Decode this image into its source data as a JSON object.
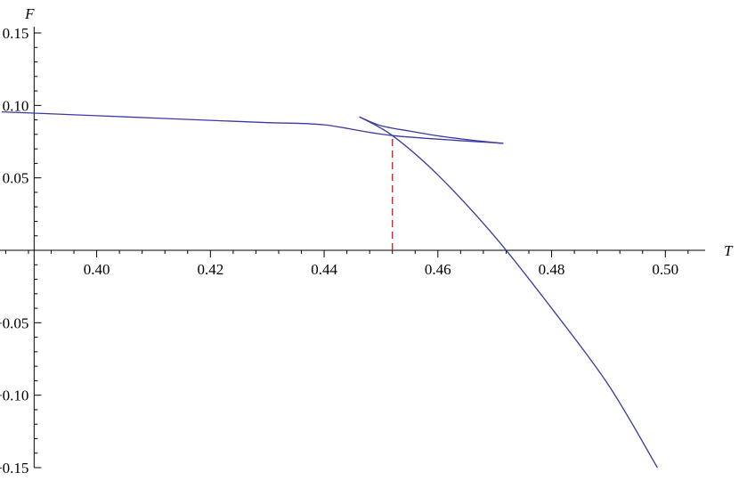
{
  "chart_data": {
    "type": "line",
    "title": "",
    "xlabel": "T",
    "ylabel": "F",
    "xlim": [
      0.383,
      0.507
    ],
    "ylim": [
      -0.15,
      0.15
    ],
    "grid": false,
    "x_ticks": [
      {
        "value": 0.4,
        "label": "0.40"
      },
      {
        "value": 0.42,
        "label": "0.42"
      },
      {
        "value": 0.44,
        "label": "0.44"
      },
      {
        "value": 0.46,
        "label": "0.46"
      },
      {
        "value": 0.48,
        "label": "0.48"
      },
      {
        "value": 0.5,
        "label": "0.50"
      }
    ],
    "y_ticks": [
      {
        "value": 0.15,
        "label": "0.15"
      },
      {
        "value": 0.1,
        "label": "0.10"
      },
      {
        "value": 0.05,
        "label": "0.05"
      },
      {
        "value": -0.05,
        "label": "−0.05"
      },
      {
        "value": -0.1,
        "label": "−0.10"
      },
      {
        "value": -0.15,
        "label": "−0.15"
      }
    ],
    "series": [
      {
        "id": "lower-branch",
        "color": "#3a3aa0",
        "points": [
          [
            0.3833,
            0.0955
          ],
          [
            0.39,
            0.0945
          ],
          [
            0.4,
            0.0929
          ],
          [
            0.41,
            0.0913
          ],
          [
            0.42,
            0.0897
          ],
          [
            0.43,
            0.0881
          ],
          [
            0.44,
            0.0866
          ],
          [
            0.452,
            0.0792
          ],
          [
            0.4715,
            0.0738
          ]
        ]
      },
      {
        "id": "upper-branch",
        "color": "#3a3aa0",
        "points": [
          [
            0.4715,
            0.0738
          ],
          [
            0.466,
            0.076
          ],
          [
            0.46,
            0.079
          ],
          [
            0.455,
            0.0823
          ],
          [
            0.45,
            0.086
          ],
          [
            0.4462,
            0.0921
          ]
        ]
      },
      {
        "id": "large-branch",
        "color": "#3a3aa0",
        "points": [
          [
            0.4462,
            0.0921
          ],
          [
            0.452,
            0.0792
          ],
          [
            0.46,
            0.052
          ],
          [
            0.47,
            0.0095
          ],
          [
            0.48,
            -0.04
          ],
          [
            0.49,
            -0.093
          ],
          [
            0.4986,
            -0.15
          ]
        ]
      }
    ],
    "transition_line": {
      "x": 0.452,
      "y_from": 0.0,
      "y_to": 0.0792,
      "color": "#dd2222",
      "style": "dashed"
    }
  }
}
